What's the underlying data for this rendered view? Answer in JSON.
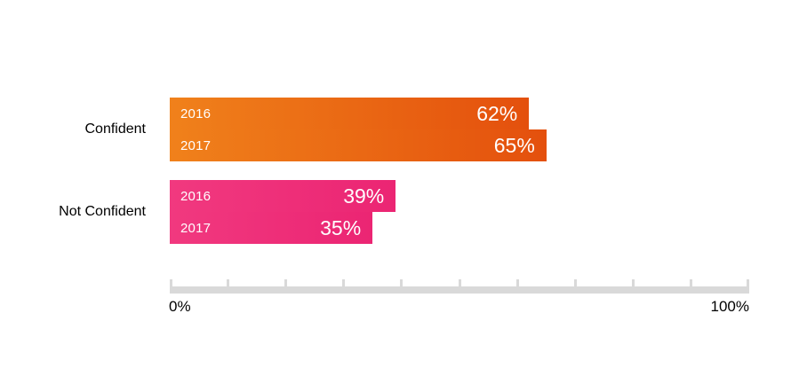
{
  "chart_data": {
    "type": "bar",
    "orientation": "horizontal",
    "title": "",
    "categories": [
      "Confident",
      "Not Confident"
    ],
    "series": [
      {
        "name": "2016",
        "values": [
          62,
          39
        ]
      },
      {
        "name": "2017",
        "values": [
          65,
          35
        ]
      }
    ],
    "axis": {
      "min": 0,
      "max": 100,
      "tick_step": 10,
      "min_label": "0%",
      "max_label": "100%",
      "color": "#d9d9d9"
    },
    "grid": false,
    "legend": "none",
    "groups": [
      {
        "category": "Confident",
        "color_start": "#f0811b",
        "color_end": "#e4500d",
        "bars": [
          {
            "year": "2016",
            "value": 62,
            "label": "62%"
          },
          {
            "year": "2017",
            "value": 65,
            "label": "65%"
          }
        ]
      },
      {
        "category": "Not Confident",
        "color_start": "#f1397f",
        "color_end": "#eb2573",
        "bars": [
          {
            "year": "2016",
            "value": 39,
            "label": "39%"
          },
          {
            "year": "2017",
            "value": 35,
            "label": "35%"
          }
        ]
      }
    ],
    "text_color": "#000000",
    "bar_text_color": "#ffffff"
  }
}
